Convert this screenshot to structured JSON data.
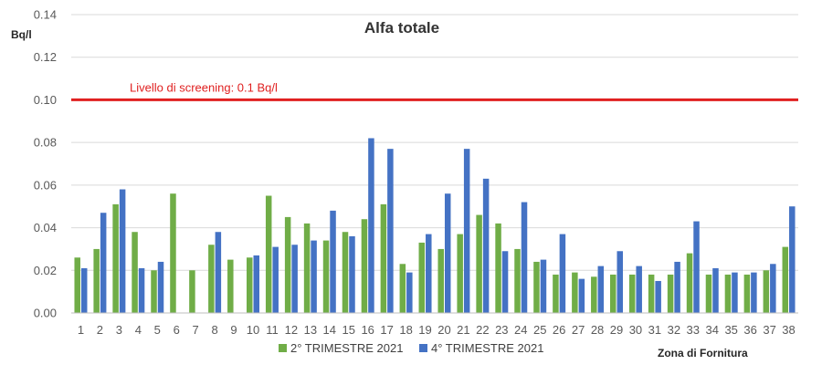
{
  "chart_data": {
    "type": "bar",
    "title": "Alfa totale",
    "ylabel": "Bq/l",
    "xlabel": "Zona di Fornitura",
    "ylim": [
      0,
      0.14
    ],
    "yticks": [
      "0.00",
      "0.02",
      "0.04",
      "0.06",
      "0.08",
      "0.10",
      "0.12",
      "0.14"
    ],
    "grid": true,
    "legend_position": "bottom",
    "reference_line": {
      "value": 0.1,
      "label": "Livello di screening: 0.1 Bq/l",
      "color": "#e02020"
    },
    "categories": [
      "1",
      "2",
      "3",
      "4",
      "5",
      "6",
      "7",
      "8",
      "9",
      "10",
      "11",
      "12",
      "13",
      "14",
      "15",
      "16",
      "17",
      "18",
      "19",
      "20",
      "21",
      "22",
      "23",
      "24",
      "25",
      "26",
      "27",
      "28",
      "29",
      "30",
      "31",
      "32",
      "33",
      "34",
      "35",
      "36",
      "37",
      "38"
    ],
    "series": [
      {
        "name": "2° TRIMESTRE 2021",
        "color": "#70ad47",
        "values": [
          0.026,
          0.03,
          0.051,
          0.038,
          0.02,
          0.056,
          0.02,
          0.032,
          0.025,
          0.026,
          0.055,
          0.045,
          0.042,
          0.034,
          0.038,
          0.044,
          0.051,
          0.023,
          0.033,
          0.03,
          0.037,
          0.046,
          0.042,
          0.03,
          0.024,
          0.018,
          0.019,
          0.017,
          0.018,
          0.018,
          0.018,
          0.018,
          0.028,
          0.018,
          0.018,
          0.018,
          0.02,
          0.031
        ]
      },
      {
        "name": "4° TRIMESTRE 2021",
        "color": "#4472c4",
        "values": [
          0.021,
          0.047,
          0.058,
          0.021,
          0.024,
          null,
          null,
          0.038,
          null,
          0.027,
          0.031,
          0.032,
          0.034,
          0.048,
          0.036,
          0.082,
          0.077,
          0.019,
          0.037,
          0.056,
          0.077,
          0.063,
          0.029,
          0.052,
          0.025,
          0.037,
          0.016,
          0.022,
          0.029,
          0.022,
          0.015,
          0.024,
          0.043,
          0.021,
          0.019,
          0.019,
          0.023,
          0.05
        ]
      }
    ]
  }
}
